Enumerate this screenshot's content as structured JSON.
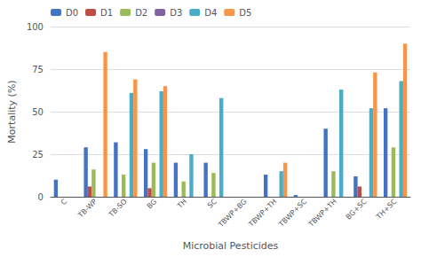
{
  "chart_data": {
    "type": "bar",
    "xlabel": "Microbial Pesticides",
    "ylabel": "Mortality (%)",
    "categories": [
      "C",
      "TB-WP",
      "TB-SO",
      "BG",
      "TH",
      "SC",
      "TBWP+BG",
      "TBWP+TH",
      "TBWP+SC",
      "TBWP+TH",
      "BG+SC",
      "TH+SC"
    ],
    "series": [
      {
        "name": "D0",
        "color": "#4472C4",
        "values": [
          10,
          29,
          32,
          28,
          20,
          20,
          0,
          13,
          1,
          40,
          12,
          52
        ]
      },
      {
        "name": "D1",
        "color": "#BE4B48",
        "values": [
          0,
          6,
          0,
          5,
          0,
          0,
          0,
          0,
          0,
          0,
          6,
          0
        ]
      },
      {
        "name": "D2",
        "color": "#9BBB59",
        "values": [
          0,
          16,
          13,
          20,
          9,
          14,
          0,
          0,
          0,
          15,
          0,
          29
        ]
      },
      {
        "name": "D3",
        "color": "#8064A2",
        "values": [
          0,
          0,
          0,
          0,
          0,
          0,
          0,
          0,
          0,
          0,
          0,
          0
        ]
      },
      {
        "name": "D4",
        "color": "#4BACC6",
        "values": [
          0,
          0,
          61,
          62,
          25,
          58,
          0,
          15,
          0,
          63,
          52,
          68
        ]
      },
      {
        "name": "D5",
        "color": "#F79646",
        "values": [
          0,
          85,
          69,
          65,
          0,
          0,
          0,
          20,
          0,
          0,
          73,
          90
        ]
      }
    ],
    "ylim": [
      0,
      100
    ],
    "yticks": [
      0,
      25,
      50,
      75,
      100
    ],
    "grid": true,
    "legend": "upper left"
  }
}
